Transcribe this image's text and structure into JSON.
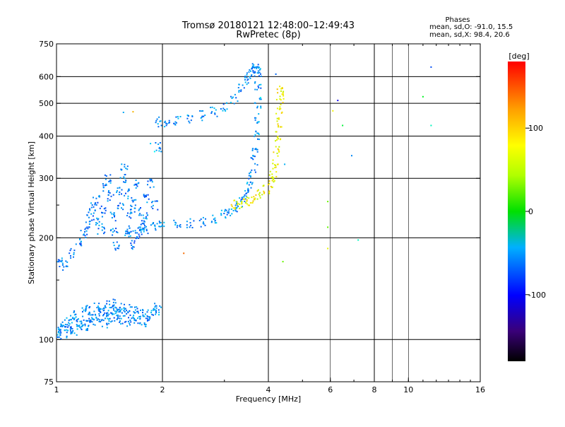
{
  "chart_data": {
    "type": "scatter",
    "title": "Tromsø 20180121 12:48:00–12:49:43",
    "subtitle": "RwPretec (8p)",
    "xlabel": "Frequency [MHz]",
    "ylabel": "Stationary phase Virtual Height [km]",
    "x_scale": "log",
    "y_scale": "log",
    "xlim": [
      1,
      16
    ],
    "ylim": [
      75,
      750
    ],
    "x_ticks": [
      {
        "value": 1,
        "label": "1"
      },
      {
        "value": 2,
        "label": "2"
      },
      {
        "value": 4,
        "label": "4"
      },
      {
        "value": 6,
        "label": "6"
      },
      {
        "value": 8,
        "label": "8"
      },
      {
        "value": 10,
        "label": "10"
      },
      {
        "value": 16,
        "label": "16"
      }
    ],
    "x_major_grid": [
      2,
      4,
      8
    ],
    "x_minor_grid": [
      6,
      9,
      10
    ],
    "y_ticks": [
      {
        "value": 75,
        "label": "75"
      },
      {
        "value": 100,
        "label": "100"
      },
      {
        "value": 200,
        "label": "200"
      },
      {
        "value": 300,
        "label": "300"
      },
      {
        "value": 400,
        "label": "400"
      },
      {
        "value": 500,
        "label": "500"
      },
      {
        "value": 600,
        "label": "600"
      },
      {
        "value": 750,
        "label": "750"
      }
    ],
    "y_minor_ticks": [
      150,
      250
    ],
    "grid": true,
    "stats": {
      "heading": "Phases",
      "line_o": "mean, sd,O: -91.0, 15.5",
      "line_x": "mean, sd,X:  98.4, 20.6"
    },
    "colorbar": {
      "label": "[deg]",
      "range": [
        -180,
        180
      ],
      "ticks": [
        {
          "value": 100,
          "label": "100"
        },
        {
          "value": 0,
          "label": "0"
        },
        {
          "value": -100,
          "label": "-100"
        }
      ]
    },
    "series": [
      {
        "trace": "low-E",
        "phase_mean": -95,
        "points": [
          [
            1.0,
            103
          ],
          [
            1.02,
            106
          ],
          [
            1.04,
            110
          ],
          [
            1.05,
            104
          ],
          [
            1.07,
            112
          ],
          [
            1.09,
            108
          ],
          [
            1.1,
            115
          ],
          [
            1.12,
            106
          ],
          [
            1.14,
            118
          ],
          [
            1.15,
            110
          ],
          [
            1.17,
            113
          ],
          [
            1.19,
            120
          ],
          [
            1.2,
            108
          ],
          [
            1.22,
            116
          ],
          [
            1.24,
            122
          ],
          [
            1.26,
            112
          ],
          [
            1.28,
            118
          ],
          [
            1.3,
            124
          ],
          [
            1.32,
            115
          ],
          [
            1.34,
            120
          ],
          [
            1.36,
            126
          ],
          [
            1.38,
            112
          ],
          [
            1.4,
            118
          ],
          [
            1.42,
            122
          ],
          [
            1.44,
            128
          ],
          [
            1.46,
            116
          ],
          [
            1.48,
            120
          ],
          [
            1.5,
            125
          ],
          [
            1.52,
            114
          ],
          [
            1.55,
            119
          ],
          [
            1.58,
            123
          ],
          [
            1.6,
            113
          ],
          [
            1.63,
            117
          ],
          [
            1.66,
            121
          ],
          [
            1.7,
            115
          ],
          [
            1.73,
            119
          ],
          [
            1.76,
            112
          ],
          [
            1.8,
            116
          ],
          [
            1.85,
            120
          ],
          [
            1.9,
            124
          ],
          [
            1.95,
            122
          ]
        ]
      },
      {
        "trace": "F-cusp-low",
        "phase_mean": -100,
        "points": [
          [
            1.02,
            170
          ],
          [
            1.06,
            165
          ],
          [
            1.1,
            180
          ],
          [
            1.16,
            196
          ],
          [
            1.2,
            205
          ],
          [
            1.22,
            218
          ],
          [
            1.25,
            232
          ],
          [
            1.27,
            245
          ],
          [
            1.3,
            258
          ],
          [
            1.32,
            225
          ],
          [
            1.34,
            212
          ],
          [
            1.36,
            240
          ],
          [
            1.38,
            280
          ],
          [
            1.4,
            300
          ],
          [
            1.42,
            265
          ],
          [
            1.44,
            230
          ],
          [
            1.46,
            210
          ],
          [
            1.48,
            190
          ],
          [
            1.5,
            275
          ],
          [
            1.52,
            250
          ],
          [
            1.54,
            300
          ],
          [
            1.56,
            320
          ],
          [
            1.58,
            270
          ],
          [
            1.6,
            235
          ],
          [
            1.62,
            212
          ],
          [
            1.64,
            190
          ],
          [
            1.66,
            255
          ],
          [
            1.68,
            290
          ],
          [
            1.7,
            240
          ],
          [
            1.72,
            205
          ],
          [
            1.75,
            218
          ],
          [
            1.78,
            230
          ],
          [
            1.8,
            260
          ],
          [
            1.85,
            290
          ],
          [
            1.9,
            250
          ],
          [
            1.95,
            370
          ]
        ]
      },
      {
        "trace": "F-O-lower",
        "phase_mean": -95,
        "points": [
          [
            1.6,
            208
          ],
          [
            1.7,
            210
          ],
          [
            1.8,
            213
          ],
          [
            1.9,
            215
          ],
          [
            2.0,
            217
          ],
          [
            2.2,
            218
          ],
          [
            2.4,
            220
          ],
          [
            2.6,
            223
          ],
          [
            2.8,
            228
          ],
          [
            3.0,
            235
          ],
          [
            3.1,
            240
          ],
          [
            3.2,
            246
          ],
          [
            3.3,
            254
          ],
          [
            3.4,
            262
          ],
          [
            3.5,
            275
          ],
          [
            3.55,
            290
          ],
          [
            3.6,
            310
          ],
          [
            3.65,
            340
          ],
          [
            3.68,
            370
          ],
          [
            3.7,
            400
          ],
          [
            3.72,
            450
          ],
          [
            3.73,
            500
          ],
          [
            3.74,
            560
          ],
          [
            3.74,
            620
          ]
        ]
      },
      {
        "trace": "F-O-upper",
        "phase_mean": -95,
        "points": [
          [
            1.95,
            440
          ],
          [
            2.05,
            438
          ],
          [
            2.2,
            442
          ],
          [
            2.4,
            450
          ],
          [
            2.6,
            460
          ],
          [
            2.8,
            472
          ],
          [
            3.0,
            490
          ],
          [
            3.2,
            515
          ],
          [
            3.35,
            550
          ],
          [
            3.45,
            585
          ],
          [
            3.55,
            610
          ],
          [
            3.62,
            630
          ],
          [
            3.68,
            640
          ],
          [
            3.72,
            620
          ]
        ]
      },
      {
        "trace": "F-X",
        "phase_mean": 98,
        "points": [
          [
            3.2,
            250
          ],
          [
            3.35,
            252
          ],
          [
            3.5,
            255
          ],
          [
            3.65,
            260
          ],
          [
            3.8,
            268
          ],
          [
            3.95,
            278
          ],
          [
            4.05,
            290
          ],
          [
            4.12,
            305
          ],
          [
            4.18,
            330
          ],
          [
            4.22,
            360
          ],
          [
            4.25,
            400
          ],
          [
            4.28,
            440
          ],
          [
            4.3,
            480
          ],
          [
            4.32,
            520
          ],
          [
            4.33,
            545
          ]
        ]
      },
      {
        "trace": "sparse",
        "phase_mean": 0,
        "points": [
          [
            1.55,
            470
          ],
          [
            1.65,
            472
          ],
          [
            1.85,
            380
          ],
          [
            1.9,
            360
          ],
          [
            2.3,
            180
          ],
          [
            3.8,
            520
          ],
          [
            4.2,
            610
          ],
          [
            4.4,
            170
          ],
          [
            4.45,
            330
          ],
          [
            5.9,
            256
          ],
          [
            5.9,
            215
          ],
          [
            5.9,
            186
          ],
          [
            6.1,
            475
          ],
          [
            6.3,
            510
          ],
          [
            6.5,
            430
          ],
          [
            6.9,
            350
          ],
          [
            7.2,
            197
          ],
          [
            11.0,
            523
          ],
          [
            11.6,
            430
          ],
          [
            11.6,
            640
          ]
        ]
      }
    ]
  }
}
